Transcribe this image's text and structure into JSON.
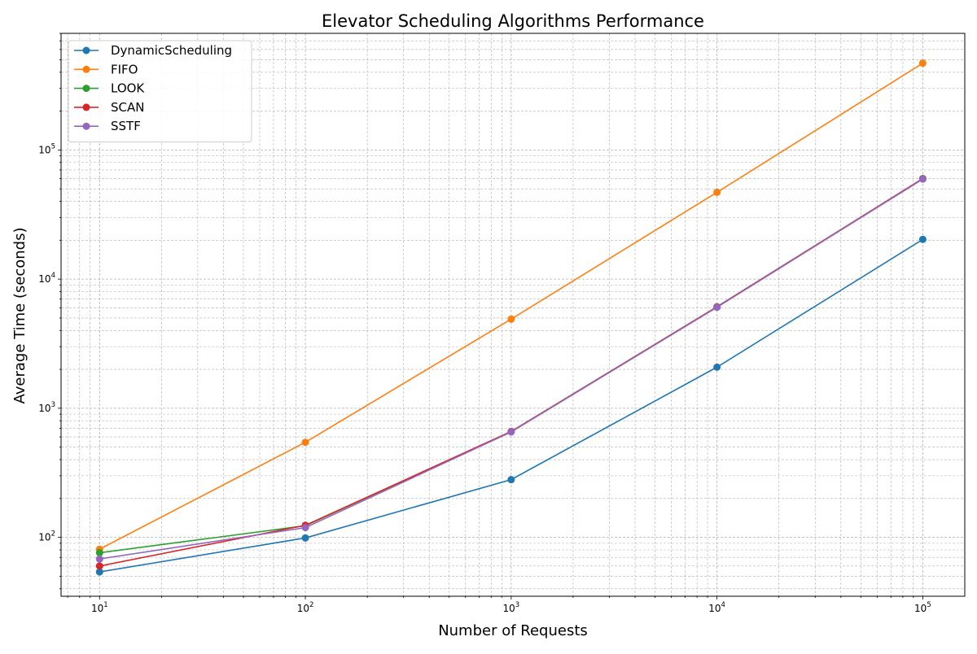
{
  "chart_data": {
    "type": "line",
    "title": "Elevator Scheduling Algorithms Performance",
    "xlabel": "Number of Requests",
    "ylabel": "Average Time (seconds)",
    "x_scale": "log",
    "y_scale": "log",
    "xlim": [
      6.5,
      160000
    ],
    "ylim": [
      35,
      800000
    ],
    "grid": true,
    "legend_position": "upper-left",
    "x": [
      10,
      100,
      1000,
      10000,
      100000
    ],
    "x_ticks": [
      {
        "value": 10,
        "base": "10",
        "exp": "1"
      },
      {
        "value": 100,
        "base": "10",
        "exp": "2"
      },
      {
        "value": 1000,
        "base": "10",
        "exp": "3"
      },
      {
        "value": 10000,
        "base": "10",
        "exp": "4"
      },
      {
        "value": 100000,
        "base": "10",
        "exp": "5"
      }
    ],
    "y_ticks": [
      {
        "value": 100,
        "base": "10",
        "exp": "2"
      },
      {
        "value": 1000,
        "base": "10",
        "exp": "3"
      },
      {
        "value": 10000,
        "base": "10",
        "exp": "4"
      },
      {
        "value": 100000,
        "base": "10",
        "exp": "5"
      }
    ],
    "series": [
      {
        "name": "DynamicScheduling",
        "color": "#1f77b4",
        "values": [
          54,
          99,
          280,
          2080,
          20300
        ]
      },
      {
        "name": "FIFO",
        "color": "#ff7f0e",
        "values": [
          81,
          545,
          4900,
          47000,
          470000
        ]
      },
      {
        "name": "LOOK",
        "color": "#2ca02c",
        "values": [
          76,
          123,
          660,
          6100,
          60000
        ]
      },
      {
        "name": "SCAN",
        "color": "#d62728",
        "values": [
          60,
          124,
          660,
          6100,
          60000
        ]
      },
      {
        "name": "SSTF",
        "color": "#9467bd",
        "values": [
          68,
          119,
          655,
          6050,
          59500
        ]
      }
    ]
  }
}
